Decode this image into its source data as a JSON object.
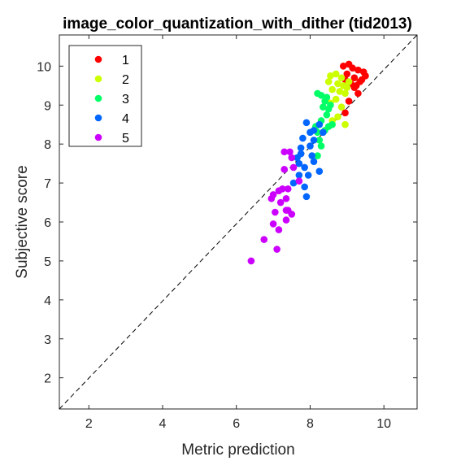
{
  "chart_data": {
    "type": "scatter",
    "title": "image_color_quantization_with_dither (tid2013)",
    "xlabel": "Metric prediction",
    "ylabel": "Subjective score",
    "xlim": [
      1.2,
      10.9
    ],
    "ylim": [
      1.2,
      10.8
    ],
    "xticks": [
      2,
      4,
      6,
      8,
      10
    ],
    "yticks": [
      2,
      3,
      4,
      5,
      6,
      7,
      8,
      9,
      10
    ],
    "grid": false,
    "legend_position": "top-left",
    "reference_line": {
      "style": "dashed",
      "from": [
        1.2,
        1.2
      ],
      "to": [
        10.9,
        10.8
      ]
    },
    "series": [
      {
        "name": "1",
        "color": "#ff0000",
        "points": [
          [
            8.9,
            10.0
          ],
          [
            9.05,
            10.05
          ],
          [
            9.15,
            9.95
          ],
          [
            9.3,
            9.9
          ],
          [
            9.5,
            9.75
          ],
          [
            9.0,
            9.8
          ],
          [
            9.2,
            9.7
          ],
          [
            9.35,
            9.6
          ],
          [
            9.1,
            9.55
          ],
          [
            9.25,
            9.5
          ],
          [
            9.4,
            9.65
          ],
          [
            8.95,
            9.65
          ],
          [
            9.3,
            9.3
          ],
          [
            9.05,
            9.1
          ],
          [
            8.95,
            8.8
          ],
          [
            9.2,
            9.45
          ],
          [
            9.45,
            9.85
          ]
        ]
      },
      {
        "name": "2",
        "color": "#ccff00",
        "points": [
          [
            8.55,
            9.75
          ],
          [
            8.7,
            9.8
          ],
          [
            8.85,
            9.7
          ],
          [
            8.75,
            9.55
          ],
          [
            8.9,
            9.5
          ],
          [
            8.8,
            9.35
          ],
          [
            8.6,
            9.4
          ],
          [
            8.95,
            9.3
          ],
          [
            8.7,
            9.15
          ],
          [
            8.55,
            9.05
          ],
          [
            8.85,
            8.95
          ],
          [
            8.95,
            8.5
          ],
          [
            8.75,
            8.7
          ],
          [
            8.6,
            8.6
          ],
          [
            9.05,
            9.6
          ],
          [
            8.5,
            9.6
          ],
          [
            9.0,
            9.45
          ]
        ]
      },
      {
        "name": "3",
        "color": "#00ff66",
        "points": [
          [
            8.2,
            9.3
          ],
          [
            8.3,
            9.25
          ],
          [
            8.4,
            9.1
          ],
          [
            8.35,
            8.95
          ],
          [
            8.5,
            8.9
          ],
          [
            8.55,
            9.0
          ],
          [
            8.45,
            8.75
          ],
          [
            8.3,
            8.6
          ],
          [
            8.5,
            8.45
          ],
          [
            8.4,
            8.35
          ],
          [
            8.6,
            8.5
          ],
          [
            8.2,
            8.3
          ],
          [
            8.25,
            8.1
          ],
          [
            8.3,
            7.95
          ],
          [
            8.2,
            7.7
          ],
          [
            8.15,
            8.45
          ],
          [
            8.45,
            9.2
          ]
        ]
      },
      {
        "name": "4",
        "color": "#0066ff",
        "points": [
          [
            7.9,
            8.55
          ],
          [
            8.0,
            8.3
          ],
          [
            8.1,
            8.35
          ],
          [
            8.25,
            8.5
          ],
          [
            8.35,
            8.3
          ],
          [
            8.1,
            8.1
          ],
          [
            8.0,
            7.95
          ],
          [
            7.8,
            8.15
          ],
          [
            7.75,
            7.9
          ],
          [
            7.65,
            7.65
          ],
          [
            7.7,
            7.5
          ],
          [
            7.85,
            7.4
          ],
          [
            8.1,
            7.55
          ],
          [
            8.25,
            7.3
          ],
          [
            7.95,
            7.2
          ],
          [
            7.7,
            7.2
          ],
          [
            7.85,
            6.9
          ],
          [
            7.55,
            7.0
          ],
          [
            7.9,
            6.65
          ],
          [
            8.05,
            7.7
          ],
          [
            7.75,
            7.75
          ]
        ]
      },
      {
        "name": "5",
        "color": "#cc00ff",
        "points": [
          [
            7.3,
            7.8
          ],
          [
            7.45,
            7.8
          ],
          [
            7.5,
            7.65
          ],
          [
            7.3,
            7.35
          ],
          [
            7.55,
            7.4
          ],
          [
            7.7,
            7.05
          ],
          [
            7.4,
            6.85
          ],
          [
            7.25,
            6.85
          ],
          [
            7.15,
            6.8
          ],
          [
            7.35,
            6.6
          ],
          [
            7.4,
            6.3
          ],
          [
            7.35,
            6.05
          ],
          [
            7.5,
            6.2
          ],
          [
            7.0,
            6.7
          ],
          [
            6.95,
            6.6
          ],
          [
            7.05,
            6.25
          ],
          [
            7.2,
            6.5
          ],
          [
            7.0,
            5.95
          ],
          [
            7.15,
            5.8
          ],
          [
            6.75,
            5.55
          ],
          [
            7.1,
            5.3
          ],
          [
            6.4,
            5.0
          ],
          [
            7.35,
            6.3
          ]
        ]
      }
    ]
  }
}
